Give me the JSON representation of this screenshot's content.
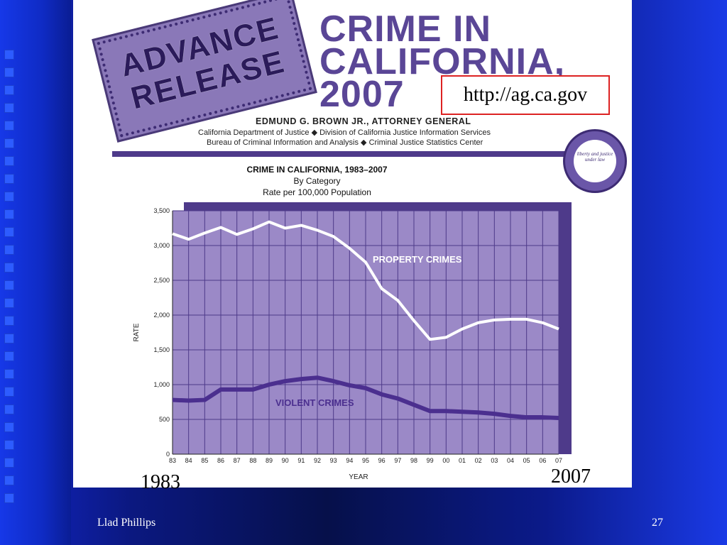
{
  "slide": {
    "footer_left": "Llad Phillips",
    "page_number": "27"
  },
  "header": {
    "badge_line1": "ADVANCE",
    "badge_line2": "RELEASE",
    "title_line1": "CRIME IN",
    "title_line2": "CALIFORNIA,",
    "title_line3": "2007",
    "url": "http://ag.ca.gov",
    "attorney_general": "EDMUND G. BROWN JR., ATTORNEY GENERAL",
    "dept_line1": "California Department of Justice ◆ Division of California Justice Information Services",
    "dept_line2": "Bureau of Criminal Information and Analysis ◆ Criminal Justice Statistics Center",
    "seal_motto": "liberty and justice under law"
  },
  "colors": {
    "plot_bg": "#9b89c7",
    "grid": "#4e3a8a",
    "violent_line": "#4b2f8f",
    "property_line": "#ffffff",
    "title": "#5a4696"
  },
  "chart_data": {
    "type": "line",
    "title": "CRIME IN CALIFORNIA, 1983–2007",
    "subtitle1": "By Category",
    "subtitle2": "Rate per 100,000 Population",
    "xlabel": "YEAR",
    "ylabel": "RATE",
    "categories": [
      "83",
      "84",
      "85",
      "86",
      "87",
      "88",
      "89",
      "90",
      "91",
      "92",
      "93",
      "94",
      "95",
      "96",
      "97",
      "98",
      "99",
      "00",
      "01",
      "02",
      "03",
      "04",
      "05",
      "06",
      "07"
    ],
    "ylim": [
      0,
      3500
    ],
    "yticks": [
      0,
      500,
      1000,
      1500,
      2000,
      2500,
      3000,
      3500
    ],
    "ytick_labels": [
      "0",
      "500",
      "1,000",
      "1,500",
      "2,000",
      "2,500",
      "3,000",
      "3,500"
    ],
    "grid": true,
    "series": [
      {
        "name": "PROPERTY CRIMES",
        "values": [
          3170,
          3090,
          3180,
          3260,
          3160,
          3240,
          3340,
          3250,
          3290,
          3220,
          3130,
          2960,
          2760,
          2380,
          2210,
          1920,
          1650,
          1680,
          1800,
          1890,
          1930,
          1940,
          1940,
          1890,
          1800
        ]
      },
      {
        "name": "VIOLENT CRIMES",
        "values": [
          780,
          770,
          780,
          930,
          930,
          930,
          1000,
          1050,
          1080,
          1100,
          1050,
          990,
          950,
          860,
          800,
          710,
          620,
          620,
          610,
          600,
          580,
          550,
          530,
          530,
          520
        ]
      }
    ],
    "annotations": [
      "1983",
      "2007"
    ]
  }
}
